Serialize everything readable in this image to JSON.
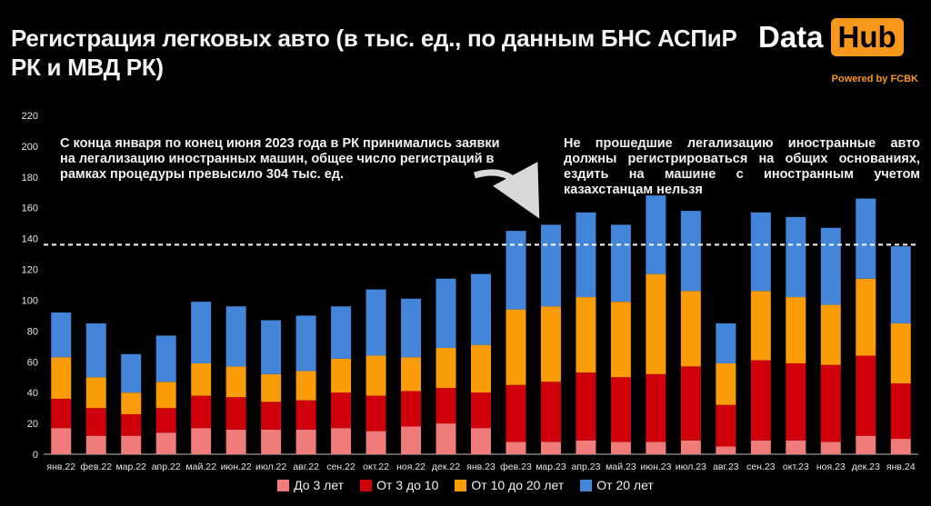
{
  "header": {
    "title": "Регистрация легковых авто (в тыс. ед., по данным БНС АСПиР РК и МВД РК)",
    "logo_data": "Data",
    "logo_hub": "Hub",
    "powered_by": "Powered by FCBK"
  },
  "annotations": {
    "left": "С конца января по конец июня 2023 года в РК принимались заявки на легализацию иностранных машин, общее число регистраций в рамках процедуры превысило 304 тыс. ед.",
    "right": "Не прошедшие легализацию иностранные авто должны регистрироваться на общих основаниях, ездить на машине с иностранным учетом казахстанцам нельзя"
  },
  "colors": {
    "background": "#000000",
    "accent": "#f7981d",
    "series": [
      "#ef7b7b",
      "#d0000b",
      "#fa9b08",
      "#4285d9"
    ]
  },
  "chart_data": {
    "type": "bar",
    "stacked": true,
    "categories": [
      "янв.22",
      "фев.22",
      "мар.22",
      "апр.22",
      "май.22",
      "июн.22",
      "июл.22",
      "авг.22",
      "сен.22",
      "окт.22",
      "ноя.22",
      "дек.22",
      "янв.23",
      "фев.23",
      "мар.23",
      "апр.23",
      "май.23",
      "июн.23",
      "июл.23",
      "авг.23",
      "сен.23",
      "окт.23",
      "ноя.23",
      "дек.23",
      "янв.24"
    ],
    "series": [
      {
        "name": "До 3 лет",
        "values": [
          17,
          12,
          12,
          14,
          17,
          16,
          16,
          16,
          17,
          15,
          18,
          20,
          17,
          8,
          8,
          9,
          8,
          8,
          9,
          5,
          9,
          9,
          8,
          12,
          10
        ]
      },
      {
        "name": "От 3 до 10",
        "values": [
          19,
          18,
          14,
          16,
          21,
          21,
          18,
          19,
          23,
          23,
          23,
          23,
          23,
          37,
          39,
          44,
          42,
          44,
          48,
          27,
          52,
          50,
          50,
          52,
          36
        ]
      },
      {
        "name": "От 10 до 20 лет",
        "values": [
          27,
          20,
          14,
          17,
          21,
          20,
          18,
          19,
          22,
          26,
          22,
          26,
          31,
          49,
          49,
          49,
          49,
          65,
          49,
          27,
          45,
          43,
          39,
          50,
          39
        ]
      },
      {
        "name": "От 20 лет",
        "values": [
          29,
          35,
          25,
          30,
          40,
          39,
          35,
          36,
          34,
          43,
          38,
          45,
          46,
          51,
          53,
          55,
          50,
          51,
          52,
          26,
          51,
          52,
          50,
          52,
          50
        ]
      }
    ],
    "ylim": [
      0,
      220
    ],
    "yticks": [
      0,
      20,
      40,
      60,
      80,
      100,
      120,
      140,
      160,
      180,
      200,
      220
    ],
    "reference_line": 136,
    "grid": false,
    "legend": "bottom"
  }
}
